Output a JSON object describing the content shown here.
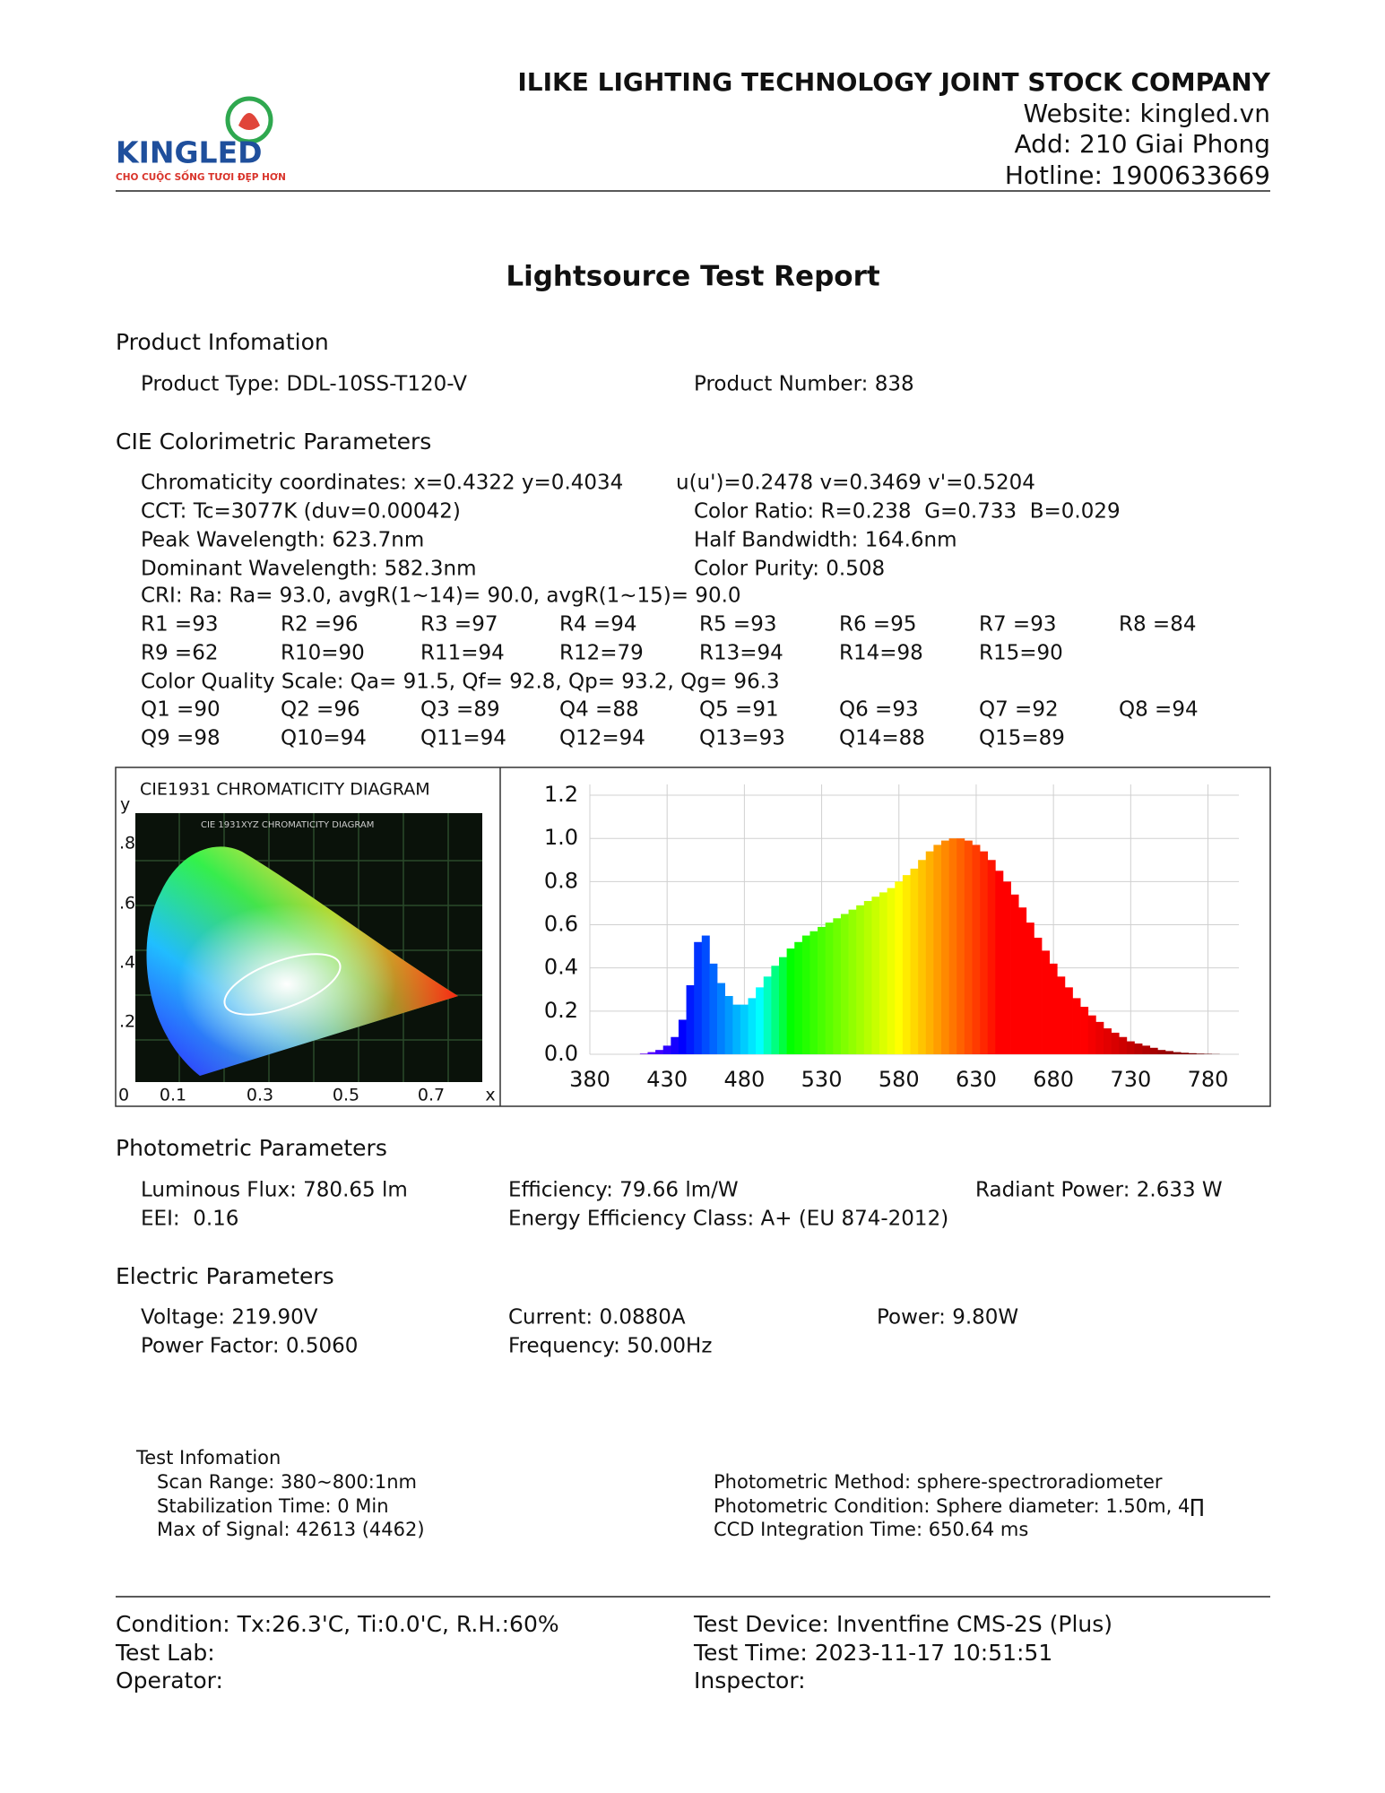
{
  "header": {
    "company": "ILIKE LIGHTING TECHNOLOGY JOINT STOCK COMPANY",
    "website": "Website: kingled.vn",
    "address": "Add: 210 Giai Phong",
    "hotline": "Hotline: 1900633669",
    "logo_name": "KINGLED",
    "logo_slogan": "CHO CUỘC SỐNG TƯƠI ĐẸP HƠN"
  },
  "title": "Lightsource Test Report",
  "product_info": {
    "heading": "Product Infomation",
    "rows": [
      [
        "Product Type: DDL-10SS-T120-V",
        "Product Number: 838"
      ]
    ]
  },
  "cie_params": {
    "heading": "CIE Colorimetric Parameters",
    "rows": [
      [
        "Chromaticity coordinates: x=0.4322 y=0.4034",
        "u(u')=0.2478 v=0.3469 v'=0.5204"
      ],
      [
        "CCT: Tc=3077K (duv=0.00042)",
        "Color Ratio: R=0.238  G=0.733  B=0.029"
      ],
      [
        "Peak Wavelength: 623.7nm",
        "Half Bandwidth: 164.6nm"
      ],
      [
        "Dominant Wavelength: 582.3nm",
        "Color Purity: 0.508"
      ],
      [
        "CRI: Ra: Ra= 93.0, avgR(1~14)= 90.0, avgR(1~15)= 90.0"
      ],
      [
        "R1 =93",
        "R2 =96",
        "R3 =97",
        "R4 =94",
        "R5 =93",
        "R6 =95",
        "R7 =93",
        "R8 =84"
      ],
      [
        "R9 =62",
        "R10=90",
        "R11=94",
        "R12=79",
        "R13=94",
        "R14=98",
        "R15=90"
      ],
      [
        "Color Quality Scale: Qa= 91.5, Qf= 92.8, Qp= 93.2, Qg= 96.3"
      ],
      [
        "Q1 =90",
        "Q2 =96",
        "Q3 =89",
        "Q4 =88",
        "Q5 =91",
        "Q6 =93",
        "Q7 =92",
        "Q8 =94"
      ],
      [
        "Q9 =98",
        "Q10=94",
        "Q11=94",
        "Q12=94",
        "Q13=93",
        "Q14=88",
        "Q15=89"
      ]
    ]
  },
  "cie_diagram": {
    "title": "CIE1931 CHROMATICITY DIAGRAM",
    "inner_title": "CIE 1931XYZ CHROMATICITY DIAGRAM",
    "x_label": "x",
    "y_label": "y",
    "xticks": [
      "0",
      "0.1",
      "0.3",
      "0.5",
      "0.7"
    ],
    "yticks": [
      ".8",
      ".6",
      ".4",
      ".2"
    ]
  },
  "chart_data": {
    "type": "bar",
    "x": [
      410,
      415,
      420,
      425,
      430,
      435,
      440,
      445,
      450,
      455,
      460,
      465,
      470,
      475,
      480,
      485,
      490,
      495,
      500,
      505,
      510,
      515,
      520,
      525,
      530,
      535,
      540,
      545,
      550,
      555,
      560,
      565,
      570,
      575,
      580,
      585,
      590,
      595,
      600,
      605,
      610,
      615,
      620,
      625,
      630,
      635,
      640,
      645,
      650,
      655,
      660,
      665,
      670,
      675,
      680,
      685,
      690,
      695,
      700,
      705,
      710,
      715,
      720,
      725,
      730,
      735,
      740,
      745,
      750,
      755,
      760,
      765,
      770,
      775,
      780,
      785,
      790
    ],
    "values": [
      0.0,
      0.003,
      0.01,
      0.02,
      0.04,
      0.08,
      0.16,
      0.32,
      0.52,
      0.55,
      0.42,
      0.33,
      0.27,
      0.23,
      0.23,
      0.26,
      0.31,
      0.36,
      0.41,
      0.45,
      0.49,
      0.52,
      0.55,
      0.57,
      0.59,
      0.61,
      0.63,
      0.65,
      0.67,
      0.69,
      0.71,
      0.73,
      0.75,
      0.77,
      0.8,
      0.83,
      0.86,
      0.9,
      0.94,
      0.97,
      0.99,
      1.0,
      1.0,
      0.99,
      0.97,
      0.94,
      0.9,
      0.85,
      0.8,
      0.74,
      0.68,
      0.61,
      0.54,
      0.48,
      0.42,
      0.36,
      0.31,
      0.26,
      0.22,
      0.18,
      0.15,
      0.12,
      0.1,
      0.08,
      0.06,
      0.05,
      0.04,
      0.03,
      0.02,
      0.015,
      0.01,
      0.007,
      0.005,
      0.003,
      0.002,
      0.001,
      0.0
    ],
    "xlim": [
      380,
      800
    ],
    "ylim": [
      0,
      1.25
    ],
    "xticks": [
      380,
      430,
      480,
      530,
      580,
      630,
      680,
      730,
      780
    ],
    "yticks": [
      {
        "value": 0,
        "label": "0.0"
      },
      {
        "value": 0.2,
        "label": "0.2"
      },
      {
        "value": 0.4,
        "label": "0.4"
      },
      {
        "value": 0.6,
        "label": "0.6"
      },
      {
        "value": 0.8,
        "label": "0.8"
      },
      {
        "value": 1,
        "label": "1.0"
      },
      {
        "value": 1.2,
        "label": "1.2"
      }
    ],
    "grid": true
  },
  "photometric": {
    "heading": "Photometric Parameters",
    "rows": [
      [
        "Luminous Flux: 780.65 lm",
        "Efficiency: 79.66 lm/W",
        "Radiant Power: 2.633 W"
      ],
      [
        "EEI:  0.16",
        "Energy Efficiency Class: A+ (EU 874-2012)"
      ]
    ]
  },
  "electric": {
    "heading": "Electric Parameters",
    "rows": [
      [
        "Voltage: 219.90V",
        "Current: 0.0880A",
        "Power: 9.80W"
      ],
      [
        "Power Factor: 0.5060",
        "Frequency: 50.00Hz"
      ]
    ]
  },
  "test_info": {
    "heading": "Test Infomation",
    "rows": [
      [
        "Scan Range: 380~800:1nm",
        "Photometric Method: sphere-spectroradiometer"
      ],
      [
        "Stabilization Time: 0 Min",
        "Photometric Condition: Sphere diameter: 1.50m, 4∏"
      ],
      [
        "Max of Signal: 42613 (4462)",
        "CCD Integration Time: 650.64 ms"
      ]
    ]
  },
  "footer": {
    "rows": [
      [
        "Condition: Tx:26.3'C, Ti:0.0'C, R.H.:60%",
        "Test Device: Inventfine CMS-2S (Plus)"
      ],
      [
        "Test Lab:",
        "Test Time: 2023-11-17 10:51:51"
      ],
      [
        "Operator:",
        "Inspector:"
      ]
    ]
  }
}
